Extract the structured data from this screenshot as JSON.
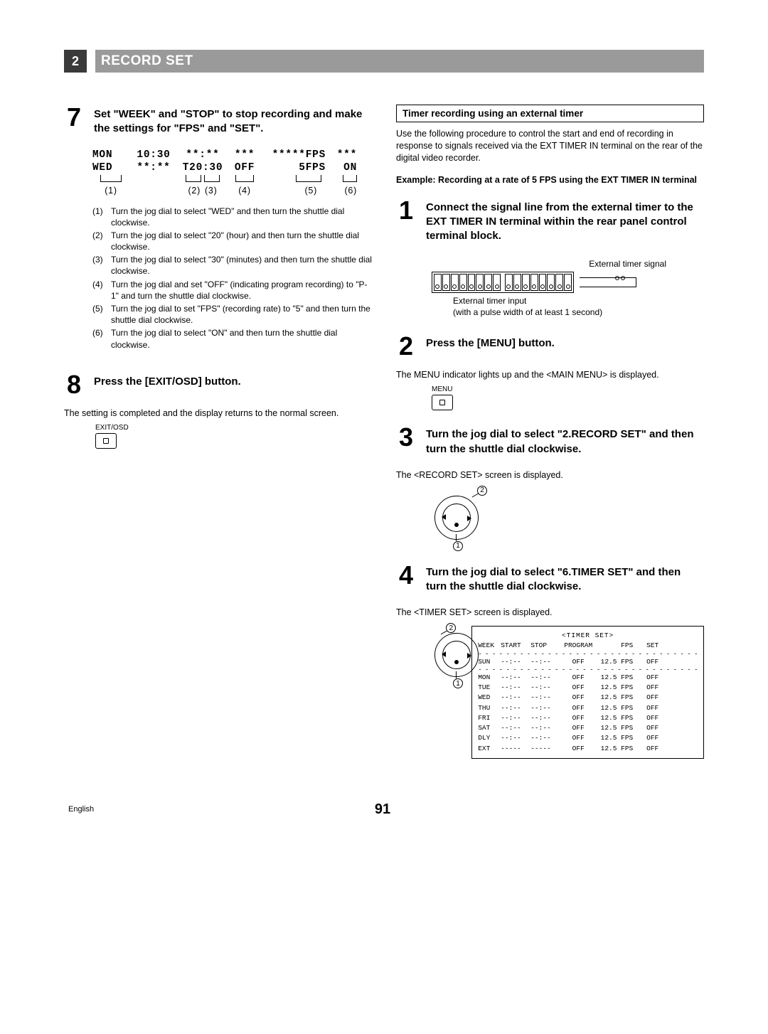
{
  "header": {
    "section_num": "2",
    "title": "RECORD SET"
  },
  "left": {
    "step7": {
      "num": "7",
      "title": "Set \"WEEK\" and \"STOP\" to stop recording and make the settings for \"FPS\" and \"SET\".",
      "table": {
        "row1": {
          "c1": "MON",
          "c2": "10:30",
          "c3": "**:**",
          "c4": "***",
          "c5": "*****FPS",
          "c6": "***"
        },
        "row2": {
          "c1": "WED",
          "c2": "**:**",
          "c3": "T20:30",
          "c4": "OFF",
          "c5": "5FPS",
          "c6": "ON"
        },
        "labels": {
          "l1": "(1)",
          "l2": "(2)",
          "l3": "(3)",
          "l4": "(4)",
          "l5": "(5)",
          "l6": "(6)"
        }
      },
      "instructions": [
        {
          "n": "(1)",
          "t": "Turn the jog dial to select \"WED\" and then turn the shuttle dial clockwise."
        },
        {
          "n": "(2)",
          "t": "Turn the jog dial to select \"20\" (hour) and then turn the shuttle dial clockwise."
        },
        {
          "n": "(3)",
          "t": "Turn the jog dial to select \"30\" (minutes) and then turn the shuttle dial clockwise."
        },
        {
          "n": "(4)",
          "t": "Turn the jog dial and set \"OFF\" (indicating program recording) to \"P-1\" and turn the shuttle dial clockwise."
        },
        {
          "n": "(5)",
          "t": "Turn the jog dial to set \"FPS\" (recording rate) to \"5\" and then turn the shuttle dial clockwise."
        },
        {
          "n": "(6)",
          "t": "Turn the jog dial to select \"ON\" and then turn the shuttle dial clockwise."
        }
      ]
    },
    "step8": {
      "num": "8",
      "title": "Press the [EXIT/OSD] button.",
      "desc": "The setting is completed and the display returns to the normal screen.",
      "btn_label": "EXIT/OSD"
    }
  },
  "right": {
    "subheading": "Timer recording using an external timer",
    "intro": "Use the following procedure to control the start and end of recording in response to signals received via the EXT TIMER IN terminal on the rear of the digital video recorder.",
    "example": "Example: Recording at a rate of 5 FPS using the EXT TIMER IN terminal",
    "step1": {
      "num": "1",
      "title": "Connect the signal line from the external timer to the EXT TIMER IN terminal within the rear panel control terminal block.",
      "top_label": "External timer signal",
      "bottom_label1": "External timer input",
      "bottom_label2": "(with a pulse width of at least 1 second)"
    },
    "step2": {
      "num": "2",
      "title": "Press the [MENU] button.",
      "desc": "The MENU indicator lights up and the <MAIN MENU> is displayed.",
      "btn_label": "MENU"
    },
    "step3": {
      "num": "3",
      "title": "Turn the jog dial to select \"2.RECORD SET\" and then turn the shuttle dial clockwise.",
      "desc": "The <RECORD SET> screen is displayed."
    },
    "step4": {
      "num": "4",
      "title": "Turn the jog dial to select \"6.TIMER SET\" and then turn the shuttle dial clockwise.",
      "desc": "The <TIMER SET> screen is displayed.",
      "table": {
        "title": "<TIMER SET>",
        "headers": {
          "c1": "WEEK",
          "c2": "START",
          "c3": "STOP",
          "c4": "PROGRAM",
          "c5": "FPS",
          "c6": "SET"
        },
        "rows": [
          {
            "c1": "SUN",
            "c2": "--:--",
            "c3": "--:--",
            "c4": "OFF",
            "c5": "12.5 FPS",
            "c6": "OFF"
          },
          {
            "c1": "MON",
            "c2": "--:--",
            "c3": "--:--",
            "c4": "OFF",
            "c5": "12.5 FPS",
            "c6": "OFF"
          },
          {
            "c1": "TUE",
            "c2": "--:--",
            "c3": "--:--",
            "c4": "OFF",
            "c5": "12.5 FPS",
            "c6": "OFF"
          },
          {
            "c1": "WED",
            "c2": "--:--",
            "c3": "--:--",
            "c4": "OFF",
            "c5": "12.5 FPS",
            "c6": "OFF"
          },
          {
            "c1": "THU",
            "c2": "--:--",
            "c3": "--:--",
            "c4": "OFF",
            "c5": "12.5 FPS",
            "c6": "OFF"
          },
          {
            "c1": "FRI",
            "c2": "--:--",
            "c3": "--:--",
            "c4": "OFF",
            "c5": "12.5 FPS",
            "c6": "OFF"
          },
          {
            "c1": "SAT",
            "c2": "--:--",
            "c3": "--:--",
            "c4": "OFF",
            "c5": "12.5 FPS",
            "c6": "OFF"
          },
          {
            "c1": "DLY",
            "c2": "--:--",
            "c3": "--:--",
            "c4": "OFF",
            "c5": "12.5 FPS",
            "c6": "OFF"
          },
          {
            "c1": "EXT",
            "c2": "-----",
            "c3": "-----",
            "c4": "OFF",
            "c5": "12.5 FPS",
            "c6": "OFF"
          }
        ]
      }
    }
  },
  "footer": {
    "lang": "English",
    "page": "91"
  },
  "colors": {
    "header_dark": "#3a3a3a",
    "header_grey": "#9a9a9a",
    "text": "#000000",
    "bg": "#ffffff"
  }
}
